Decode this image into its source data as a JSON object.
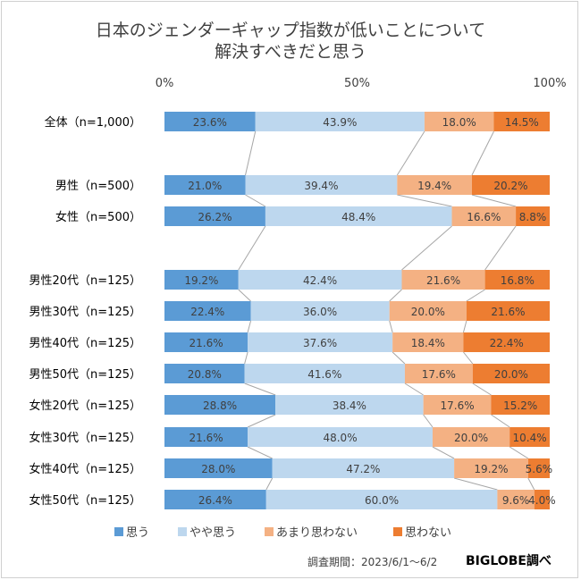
{
  "title": {
    "line1": "日本のジェンダーギャップ指数が低いことについて",
    "line2": "解決すべきだと思う"
  },
  "footer": {
    "period": "調査期間：2023/6/1～6/2",
    "brand": "BIGLOBE調べ"
  },
  "colors": {
    "series": [
      "#5b9bd5",
      "#bdd7ee",
      "#f4b183",
      "#ed7d31"
    ],
    "connector": "#a6a6a6",
    "label_text": "#404040"
  },
  "chart_data": {
    "type": "bar",
    "orientation": "horizontal",
    "stacked": "percent",
    "xlim": [
      0,
      100
    ],
    "x_ticks": [
      "0%",
      "50%",
      "100%"
    ],
    "legend_position": "bottom",
    "categories": [
      "全体（n=1,000）",
      "男性（n=500）",
      "女性（n=500）",
      "男性20代（n=125）",
      "男性30代（n=125）",
      "男性40代（n=125）",
      "男性50代（n=125）",
      "女性20代（n=125）",
      "女性30代（n=125）",
      "女性40代（n=125）",
      "女性50代（n=125）"
    ],
    "series": [
      {
        "name": "思う",
        "values": [
          23.6,
          21.0,
          26.2,
          19.2,
          22.4,
          21.6,
          20.8,
          28.8,
          21.6,
          28.0,
          26.4
        ]
      },
      {
        "name": "やや思う",
        "values": [
          43.9,
          39.4,
          48.4,
          42.4,
          36.0,
          37.6,
          41.6,
          38.4,
          48.0,
          47.2,
          60.0
        ]
      },
      {
        "name": "あまり思わない",
        "values": [
          18.0,
          19.4,
          16.6,
          21.6,
          20.0,
          18.4,
          17.6,
          17.6,
          20.0,
          19.2,
          9.6
        ]
      },
      {
        "name": "思わない",
        "values": [
          14.5,
          20.2,
          8.8,
          16.8,
          21.6,
          22.4,
          20.0,
          15.2,
          10.4,
          5.6,
          4.0
        ]
      }
    ],
    "value_labels": [
      [
        "23.6%",
        "43.9%",
        "18.0%",
        "14.5%"
      ],
      [
        "21.0%",
        "39.4%",
        "19.4%",
        "20.2%"
      ],
      [
        "26.2%",
        "48.4%",
        "16.6%",
        "8.8%"
      ],
      [
        "19.2%",
        "42.4%",
        "21.6%",
        "16.8%"
      ],
      [
        "22.4%",
        "36.0%",
        "20.0%",
        "21.6%"
      ],
      [
        "21.6%",
        "37.6%",
        "18.4%",
        "22.4%"
      ],
      [
        "20.8%",
        "41.6%",
        "17.6%",
        "20.0%"
      ],
      [
        "28.8%",
        "38.4%",
        "17.6%",
        "15.2%"
      ],
      [
        "21.6%",
        "48.0%",
        "20.0%",
        "10.4%"
      ],
      [
        "28.0%",
        "47.2%",
        "19.2%",
        "5.6%"
      ],
      [
        "26.4%",
        "60.0%",
        "9.6%",
        "4.0%"
      ]
    ]
  }
}
